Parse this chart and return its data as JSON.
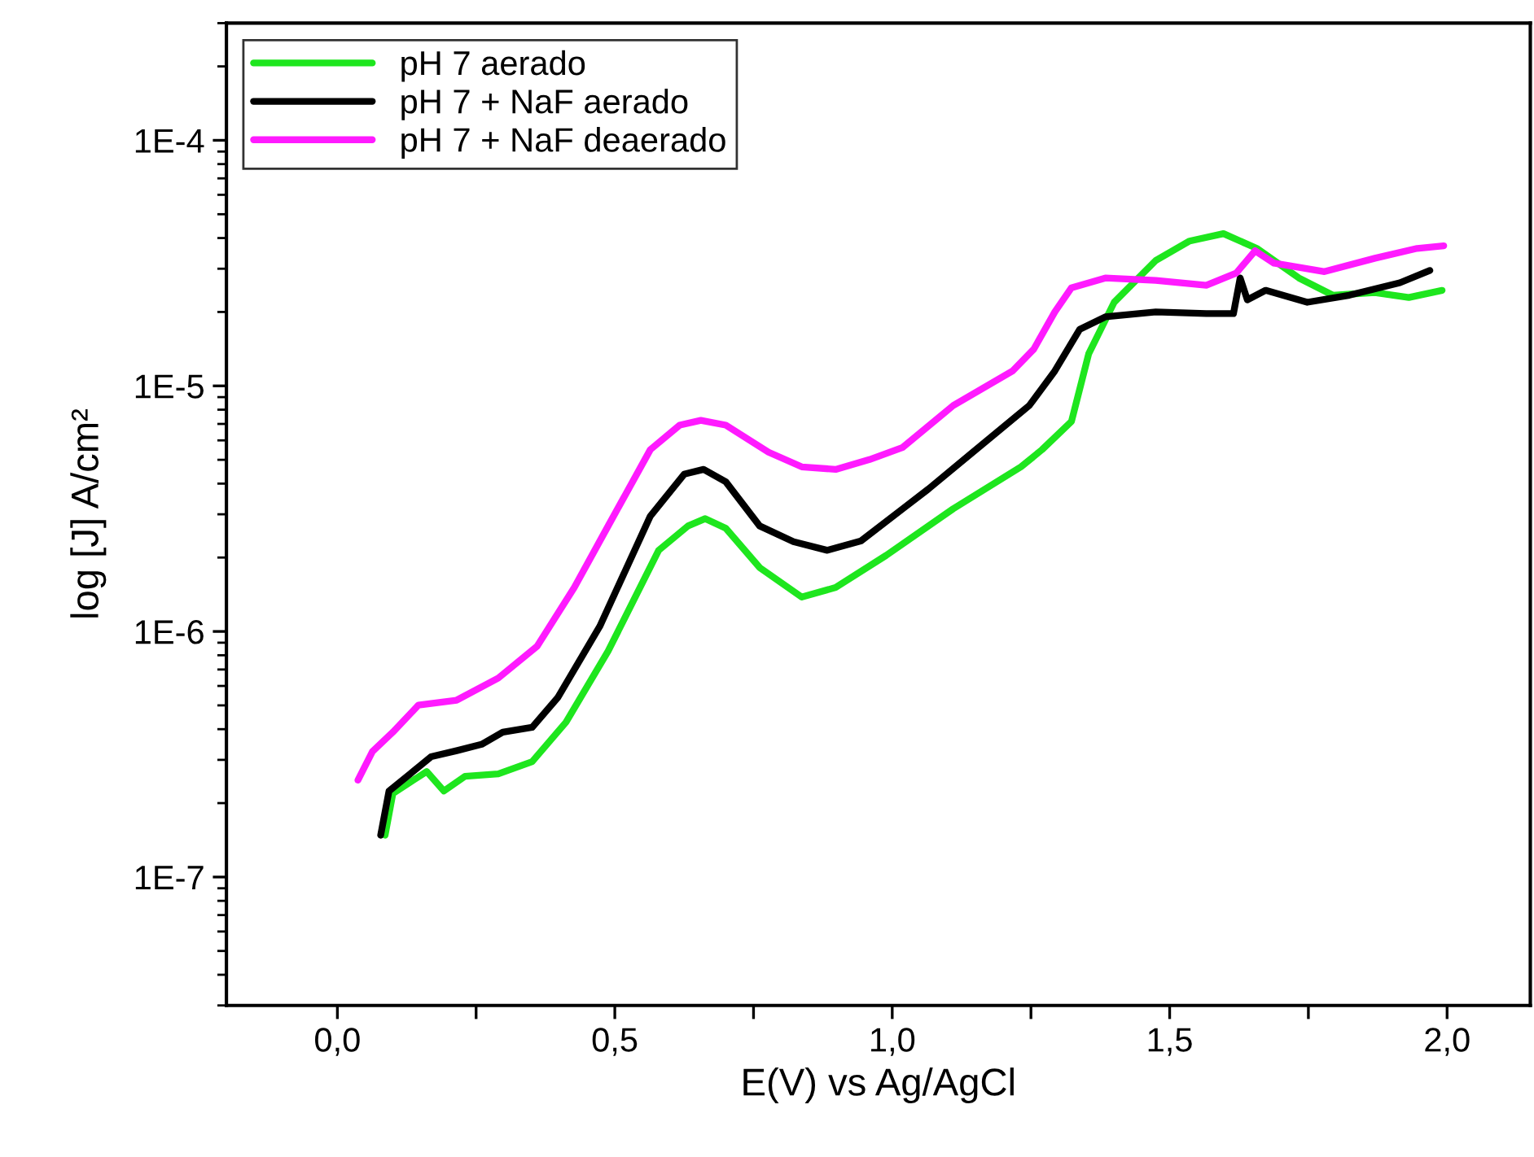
{
  "chart_data": {
    "type": "line",
    "xlabel": "E(V) vs Ag/AgCl",
    "ylabel": "log [J] A/cm²",
    "log": "y",
    "grid": false,
    "legend": "top left",
    "marker": "none",
    "line_style": "solid",
    "xlim": [
      -0.2,
      2.15
    ],
    "xticks": [
      {
        "value": 0,
        "label": "0,0"
      },
      {
        "value": 0.25,
        "label": null
      },
      {
        "value": 0.5,
        "label": "0,5"
      },
      {
        "value": 0.75,
        "label": null
      },
      {
        "value": 1.0,
        "label": "1,0"
      },
      {
        "value": 1.25,
        "label": null
      },
      {
        "value": 1.5,
        "label": "1,5"
      },
      {
        "value": 1.75,
        "label": null
      },
      {
        "value": 2.0,
        "label": "2,0"
      }
    ],
    "ylim": [
      3e-08,
      0.0003
    ],
    "yticks": [
      {
        "value": 1e-07,
        "label": "1E-7"
      },
      {
        "value": 1e-06,
        "label": "1E-6"
      },
      {
        "value": 1e-05,
        "label": "1E-5"
      },
      {
        "value": 0.0001,
        "label": "1E-4"
      }
    ],
    "series": [
      {
        "name": "pH 7 aerado",
        "color": "#1ee61e",
        "x": [
          0.086,
          0.1,
          0.161,
          0.192,
          0.23,
          0.29,
          0.351,
          0.412,
          0.488,
          0.579,
          0.632,
          0.663,
          0.7,
          0.761,
          0.837,
          0.898,
          0.989,
          1.11,
          1.232,
          1.27,
          1.323,
          1.354,
          1.4,
          1.475,
          1.536,
          1.597,
          1.657,
          1.733,
          1.794,
          1.87,
          1.931,
          1.991
        ],
        "values": [
          1.48e-07,
          2.19e-07,
          2.69e-07,
          2.24e-07,
          2.57e-07,
          2.63e-07,
          2.95e-07,
          4.27e-07,
          8.32e-07,
          2.14e-06,
          2.69e-06,
          2.88e-06,
          2.63e-06,
          1.82e-06,
          1.38e-06,
          1.51e-06,
          2.04e-06,
          3.16e-06,
          4.68e-06,
          5.5e-06,
          7.16e-06,
          1.35e-05,
          2.19e-05,
          3.24e-05,
          3.89e-05,
          4.17e-05,
          3.63e-05,
          2.75e-05,
          2.34e-05,
          2.4e-05,
          2.29e-05,
          2.45e-05
        ]
      },
      {
        "name": "pH 7 + NaF aerado",
        "color": "#000000",
        "x": [
          0.078,
          0.093,
          0.131,
          0.169,
          0.215,
          0.26,
          0.298,
          0.351,
          0.397,
          0.473,
          0.564,
          0.625,
          0.66,
          0.7,
          0.761,
          0.822,
          0.883,
          0.944,
          1.019,
          1.065,
          1.14,
          1.247,
          1.293,
          1.338,
          1.384,
          1.475,
          1.566,
          1.615,
          1.627,
          1.64,
          1.673,
          1.748,
          1.824,
          1.915,
          1.969
        ],
        "values": [
          1.48e-07,
          2.24e-07,
          2.63e-07,
          3.09e-07,
          3.27e-07,
          3.47e-07,
          3.89e-07,
          4.07e-07,
          5.37e-07,
          1.05e-06,
          2.95e-06,
          4.37e-06,
          4.57e-06,
          4.07e-06,
          2.69e-06,
          2.32e-06,
          2.14e-06,
          2.34e-06,
          3.16e-06,
          3.8e-06,
          5.25e-06,
          8.32e-06,
          1.15e-05,
          1.7e-05,
          1.91e-05,
          2e-05,
          1.97e-05,
          1.97e-05,
          2.75e-05,
          2.24e-05,
          2.45e-05,
          2.19e-05,
          2.34e-05,
          2.63e-05,
          2.95e-05
        ]
      },
      {
        "name": "pH 7 + NaF deaerado",
        "color": "#ff1aff",
        "x": [
          0.037,
          0.063,
          0.1,
          0.146,
          0.215,
          0.29,
          0.36,
          0.427,
          0.488,
          0.564,
          0.617,
          0.655,
          0.7,
          0.777,
          0.837,
          0.898,
          0.959,
          1.019,
          1.11,
          1.217,
          1.255,
          1.293,
          1.323,
          1.384,
          1.475,
          1.566,
          1.62,
          1.654,
          1.688,
          1.779,
          1.87,
          1.946,
          1.994
        ],
        "values": [
          2.48e-07,
          3.24e-07,
          3.89e-07,
          5.01e-07,
          5.25e-07,
          6.46e-07,
          8.71e-07,
          1.51e-06,
          2.69e-06,
          5.5e-06,
          6.92e-06,
          7.24e-06,
          6.92e-06,
          5.37e-06,
          4.68e-06,
          4.57e-06,
          5.01e-06,
          5.62e-06,
          8.32e-06,
          1.15e-05,
          1.41e-05,
          2e-05,
          2.51e-05,
          2.75e-05,
          2.69e-05,
          2.57e-05,
          2.88e-05,
          3.55e-05,
          3.16e-05,
          2.92e-05,
          3.31e-05,
          3.63e-05,
          3.72e-05
        ]
      }
    ]
  }
}
